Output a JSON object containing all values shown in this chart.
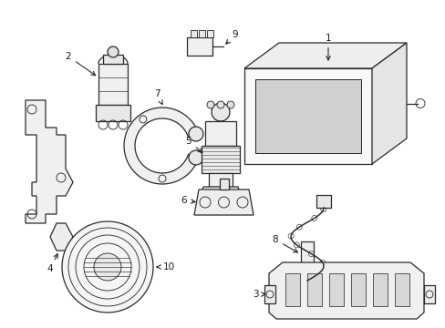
{
  "bg_color": "#ffffff",
  "line_color": "#2a2a2a",
  "text_color": "#1a1a1a",
  "figsize": [
    4.89,
    3.6
  ],
  "dpi": 100,
  "lw": 0.9
}
